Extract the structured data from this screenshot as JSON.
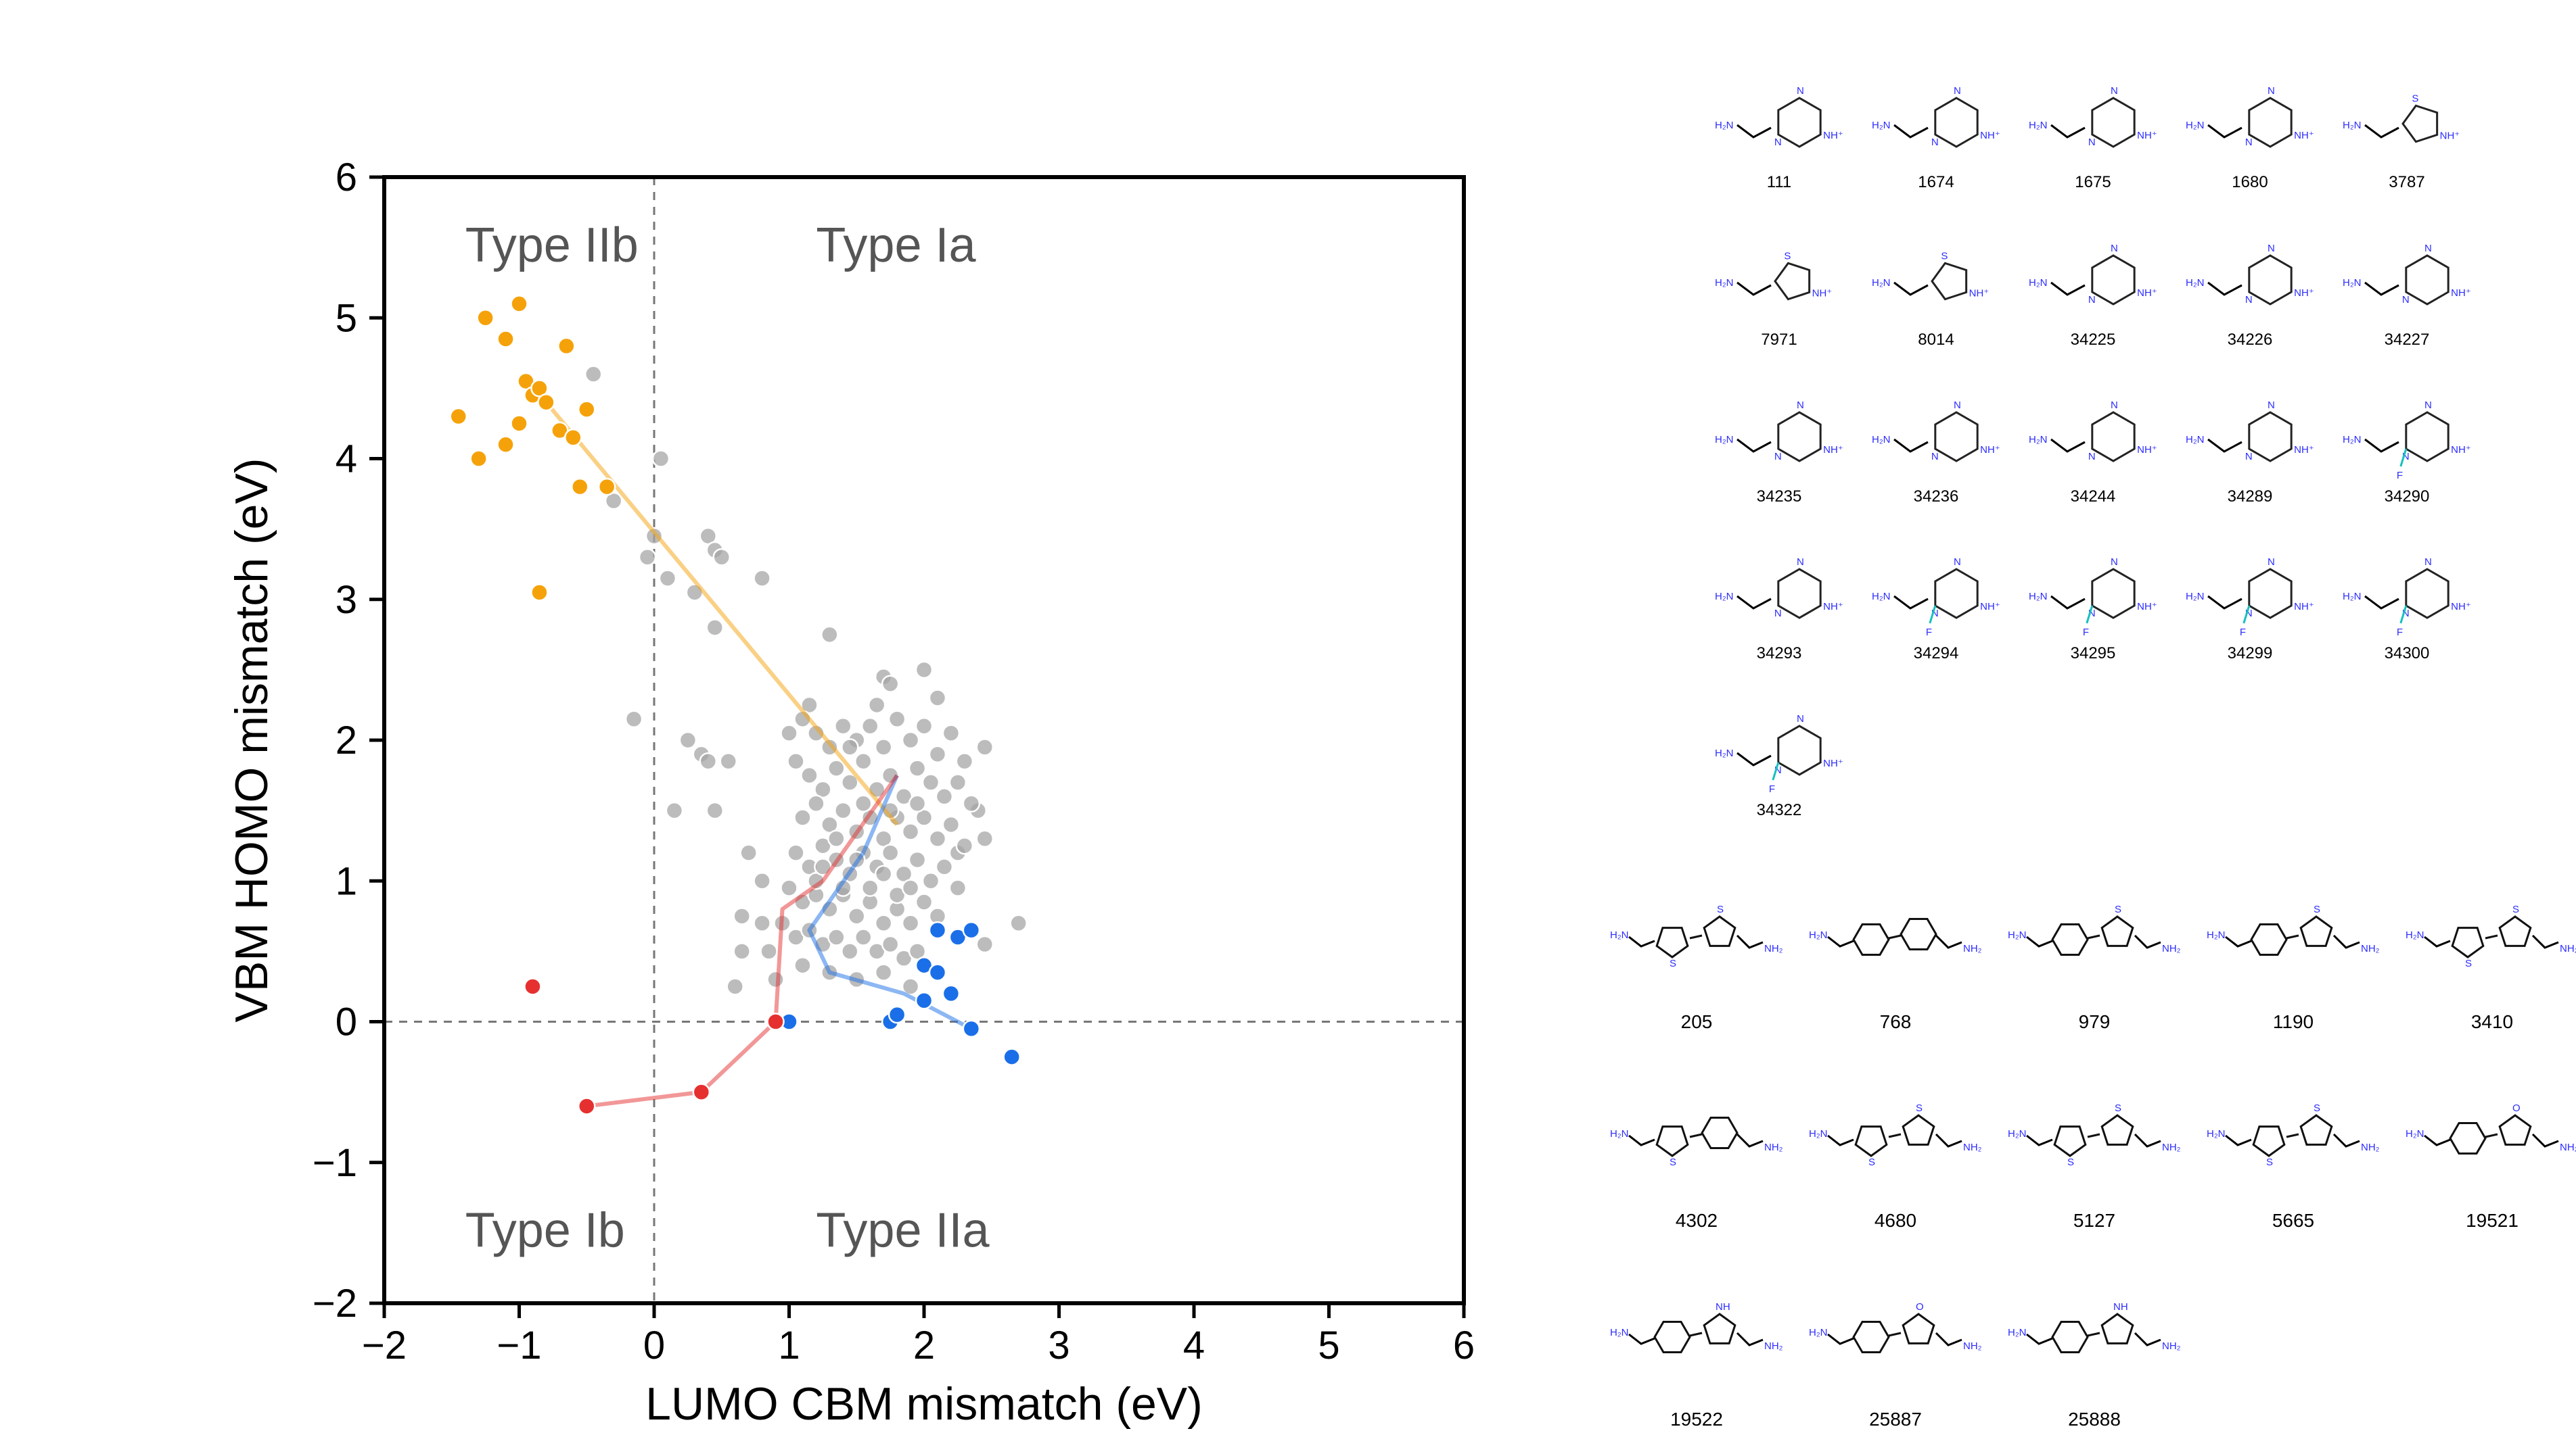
{
  "chart_data": {
    "type": "scatter",
    "xlabel": "LUMO CBM mismatch (eV)",
    "ylabel": "VBM HOMO mismatch (eV)",
    "xlim": [
      -2,
      6
    ],
    "ylim": [
      -2,
      6
    ],
    "xticks": [
      -2,
      -1,
      0,
      1,
      2,
      3,
      4,
      5,
      6
    ],
    "yticks": [
      -2,
      -1,
      0,
      1,
      2,
      3,
      4,
      5,
      6
    ],
    "xtick_labels": [
      "−2",
      "−1",
      "0",
      "1",
      "2",
      "3",
      "4",
      "5",
      "6"
    ],
    "ytick_labels": [
      "−2",
      "−1",
      "0",
      "1",
      "2",
      "3",
      "4",
      "5",
      "6"
    ],
    "reference_lines": {
      "x": 0,
      "y": 0,
      "style": "dashed"
    },
    "annotations": [
      {
        "text": "Type IIb",
        "x": -1.4,
        "y": 5.4
      },
      {
        "text": "Type Ia",
        "x": 1.2,
        "y": 5.4
      },
      {
        "text": "Type Ib",
        "x": -1.4,
        "y": -1.6
      },
      {
        "text": "Type IIa",
        "x": 1.2,
        "y": -1.6
      }
    ],
    "series": [
      {
        "role": "gray",
        "color": "#a6a6a6",
        "points": [
          [
            -0.45,
            4.6
          ],
          [
            -0.3,
            3.7
          ],
          [
            0.05,
            4.0
          ],
          [
            0.0,
            3.45
          ],
          [
            -0.05,
            3.3
          ],
          [
            0.4,
            3.45
          ],
          [
            0.45,
            3.35
          ],
          [
            0.5,
            3.3
          ],
          [
            0.1,
            3.15
          ],
          [
            0.3,
            3.05
          ],
          [
            0.8,
            3.15
          ],
          [
            0.45,
            2.8
          ],
          [
            -0.15,
            2.15
          ],
          [
            0.25,
            2.0
          ],
          [
            0.35,
            1.9
          ],
          [
            0.4,
            1.85
          ],
          [
            0.55,
            1.85
          ],
          [
            0.15,
            1.5
          ],
          [
            0.45,
            1.5
          ],
          [
            1.3,
            2.75
          ],
          [
            1.15,
            2.25
          ],
          [
            1.7,
            2.45
          ],
          [
            1.75,
            2.4
          ],
          [
            2.0,
            2.5
          ],
          [
            2.1,
            2.3
          ],
          [
            0.7,
            1.2
          ],
          [
            0.8,
            1.0
          ],
          [
            0.65,
            0.75
          ],
          [
            0.8,
            0.7
          ],
          [
            0.65,
            0.5
          ],
          [
            0.85,
            0.5
          ],
          [
            0.6,
            0.25
          ],
          [
            0.9,
            0.3
          ],
          [
            2.7,
            0.7
          ],
          [
            2.45,
            0.55
          ],
          [
            2.45,
            1.3
          ],
          [
            2.25,
            1.2
          ],
          [
            2.4,
            1.5
          ],
          [
            1.0,
            2.05
          ],
          [
            1.1,
            2.15
          ],
          [
            1.2,
            2.05
          ],
          [
            1.3,
            1.95
          ],
          [
            1.4,
            2.1
          ],
          [
            1.5,
            2.0
          ],
          [
            1.6,
            2.1
          ],
          [
            1.7,
            1.95
          ],
          [
            1.8,
            2.15
          ],
          [
            1.9,
            2.0
          ],
          [
            2.0,
            2.1
          ],
          [
            2.1,
            1.9
          ],
          [
            2.2,
            2.05
          ],
          [
            2.3,
            1.85
          ],
          [
            2.45,
            1.95
          ],
          [
            1.05,
            1.85
          ],
          [
            1.15,
            1.75
          ],
          [
            1.25,
            1.65
          ],
          [
            1.35,
            1.8
          ],
          [
            1.45,
            1.7
          ],
          [
            1.55,
            1.85
          ],
          [
            1.65,
            1.65
          ],
          [
            1.75,
            1.75
          ],
          [
            1.85,
            1.6
          ],
          [
            1.95,
            1.8
          ],
          [
            2.05,
            1.7
          ],
          [
            2.15,
            1.6
          ],
          [
            2.25,
            1.7
          ],
          [
            2.35,
            1.55
          ],
          [
            1.1,
            1.45
          ],
          [
            1.2,
            1.55
          ],
          [
            1.3,
            1.4
          ],
          [
            1.4,
            1.5
          ],
          [
            1.5,
            1.35
          ],
          [
            1.6,
            1.45
          ],
          [
            1.7,
            1.3
          ],
          [
            1.8,
            1.45
          ],
          [
            1.9,
            1.35
          ],
          [
            2.0,
            1.45
          ],
          [
            2.1,
            1.3
          ],
          [
            2.2,
            1.4
          ],
          [
            2.3,
            1.25
          ],
          [
            1.05,
            1.2
          ],
          [
            1.15,
            1.1
          ],
          [
            1.25,
            1.25
          ],
          [
            1.35,
            1.15
          ],
          [
            1.45,
            1.05
          ],
          [
            1.55,
            1.2
          ],
          [
            1.65,
            1.1
          ],
          [
            1.75,
            1.2
          ],
          [
            1.85,
            1.05
          ],
          [
            1.95,
            1.15
          ],
          [
            2.05,
            1.0
          ],
          [
            2.15,
            1.1
          ],
          [
            2.25,
            0.95
          ],
          [
            1.0,
            0.95
          ],
          [
            1.1,
            0.85
          ],
          [
            1.2,
            0.9
          ],
          [
            1.3,
            0.8
          ],
          [
            1.4,
            0.9
          ],
          [
            1.5,
            0.75
          ],
          [
            1.6,
            0.85
          ],
          [
            1.7,
            0.7
          ],
          [
            1.8,
            0.8
          ],
          [
            1.9,
            0.7
          ],
          [
            2.0,
            0.85
          ],
          [
            2.1,
            0.75
          ],
          [
            0.95,
            0.7
          ],
          [
            1.05,
            0.6
          ],
          [
            1.15,
            0.65
          ],
          [
            1.25,
            0.55
          ],
          [
            1.35,
            0.6
          ],
          [
            1.45,
            0.5
          ],
          [
            1.55,
            0.6
          ],
          [
            1.65,
            0.5
          ],
          [
            1.75,
            0.55
          ],
          [
            1.85,
            0.45
          ],
          [
            1.95,
            0.5
          ],
          [
            1.1,
            0.4
          ],
          [
            1.3,
            0.35
          ],
          [
            1.5,
            0.3
          ],
          [
            1.7,
            0.35
          ],
          [
            1.9,
            0.25
          ],
          [
            2.0,
            0.4
          ],
          [
            1.2,
            1.0
          ],
          [
            1.4,
            0.95
          ],
          [
            1.6,
            0.95
          ],
          [
            1.8,
            0.9
          ],
          [
            1.35,
            1.3
          ],
          [
            1.55,
            1.55
          ],
          [
            1.75,
            1.5
          ],
          [
            1.95,
            1.55
          ],
          [
            1.45,
            1.95
          ],
          [
            1.65,
            2.25
          ],
          [
            1.25,
            1.1
          ],
          [
            1.5,
            1.15
          ],
          [
            1.7,
            1.05
          ],
          [
            1.9,
            0.95
          ]
        ]
      },
      {
        "role": "orange",
        "color": "#f5a20a",
        "points": [
          [
            -1.45,
            4.3
          ],
          [
            -1.3,
            4.0
          ],
          [
            -1.25,
            5.0
          ],
          [
            -1.1,
            4.85
          ],
          [
            -1.1,
            4.1
          ],
          [
            -1.0,
            5.1
          ],
          [
            -1.0,
            4.25
          ],
          [
            -0.95,
            4.55
          ],
          [
            -0.9,
            4.45
          ],
          [
            -0.85,
            4.5
          ],
          [
            -0.8,
            4.4
          ],
          [
            -0.7,
            4.2
          ],
          [
            -0.65,
            4.8
          ],
          [
            -0.6,
            4.15
          ],
          [
            -0.55,
            3.8
          ],
          [
            -0.5,
            4.35
          ],
          [
            -0.35,
            3.8
          ],
          [
            -0.85,
            3.05
          ]
        ],
        "trend": [
          [
            -0.8,
            4.4
          ],
          [
            1.8,
            1.4
          ]
        ]
      },
      {
        "role": "blue",
        "color": "#1a6fe8",
        "points": [
          [
            1.0,
            0.0
          ],
          [
            1.75,
            0.0
          ],
          [
            1.8,
            0.05
          ],
          [
            2.0,
            0.15
          ],
          [
            2.0,
            0.4
          ],
          [
            2.1,
            0.35
          ],
          [
            2.1,
            0.65
          ],
          [
            2.2,
            0.2
          ],
          [
            2.25,
            0.6
          ],
          [
            2.35,
            0.65
          ],
          [
            2.35,
            -0.05
          ],
          [
            2.65,
            -0.25
          ]
        ],
        "trend": [
          [
            1.8,
            1.75
          ],
          [
            1.55,
            1.2
          ],
          [
            1.15,
            0.65
          ],
          [
            1.3,
            0.35
          ],
          [
            1.85,
            0.2
          ],
          [
            2.35,
            -0.05
          ]
        ]
      },
      {
        "role": "red",
        "color": "#e63030",
        "points": [
          [
            -0.9,
            0.25
          ],
          [
            -0.5,
            -0.6
          ],
          [
            0.35,
            -0.5
          ],
          [
            0.9,
            0.0
          ]
        ],
        "trend": [
          [
            -0.5,
            -0.6
          ],
          [
            0.35,
            -0.5
          ],
          [
            0.9,
            0.0
          ],
          [
            0.95,
            0.8
          ],
          [
            1.25,
            1.0
          ],
          [
            1.8,
            1.75
          ]
        ]
      }
    ]
  },
  "molecules_top": [
    {
      "id": "111",
      "variant": "pyr"
    },
    {
      "id": "1674",
      "variant": "pyr"
    },
    {
      "id": "1675",
      "variant": "pyr"
    },
    {
      "id": "1680",
      "variant": "pyr"
    },
    {
      "id": "3787",
      "variant": "five"
    },
    {
      "id": "7971",
      "variant": "five"
    },
    {
      "id": "8014",
      "variant": "five"
    },
    {
      "id": "34225",
      "variant": "pyr"
    },
    {
      "id": "34226",
      "variant": "pyr"
    },
    {
      "id": "34227",
      "variant": "pyr"
    },
    {
      "id": "34235",
      "variant": "pyr"
    },
    {
      "id": "34236",
      "variant": "pyr"
    },
    {
      "id": "34244",
      "variant": "pyr"
    },
    {
      "id": "34289",
      "variant": "pyr"
    },
    {
      "id": "34290",
      "variant": "pyrF"
    },
    {
      "id": "34293",
      "variant": "pyr"
    },
    {
      "id": "34294",
      "variant": "pyrF"
    },
    {
      "id": "34295",
      "variant": "pyrF"
    },
    {
      "id": "34299",
      "variant": "pyrF"
    },
    {
      "id": "34300",
      "variant": "pyrF"
    },
    {
      "id": "34322",
      "variant": "pyrF"
    }
  ],
  "molecules_bottom": [
    {
      "id": "205",
      "variant": "thth"
    },
    {
      "id": "768",
      "variant": "phph"
    },
    {
      "id": "979",
      "variant": "phth"
    },
    {
      "id": "1190",
      "variant": "phth"
    },
    {
      "id": "3410",
      "variant": "thth"
    },
    {
      "id": "4302",
      "variant": "thph"
    },
    {
      "id": "4680",
      "variant": "thth"
    },
    {
      "id": "5127",
      "variant": "thth"
    },
    {
      "id": "5665",
      "variant": "thth"
    },
    {
      "id": "19521",
      "variant": "phfu"
    },
    {
      "id": "19522",
      "variant": "phpy"
    },
    {
      "id": "25887",
      "variant": "phfu"
    },
    {
      "id": "25888",
      "variant": "phpy"
    }
  ],
  "atom_labels": {
    "amine": "H₂N",
    "ring_n": "N",
    "ring_nh": "NH⁺",
    "sulfur": "S",
    "fluorine": "F",
    "oxygen": "O",
    "nh": "NH",
    "end_amine": "NH₂"
  }
}
